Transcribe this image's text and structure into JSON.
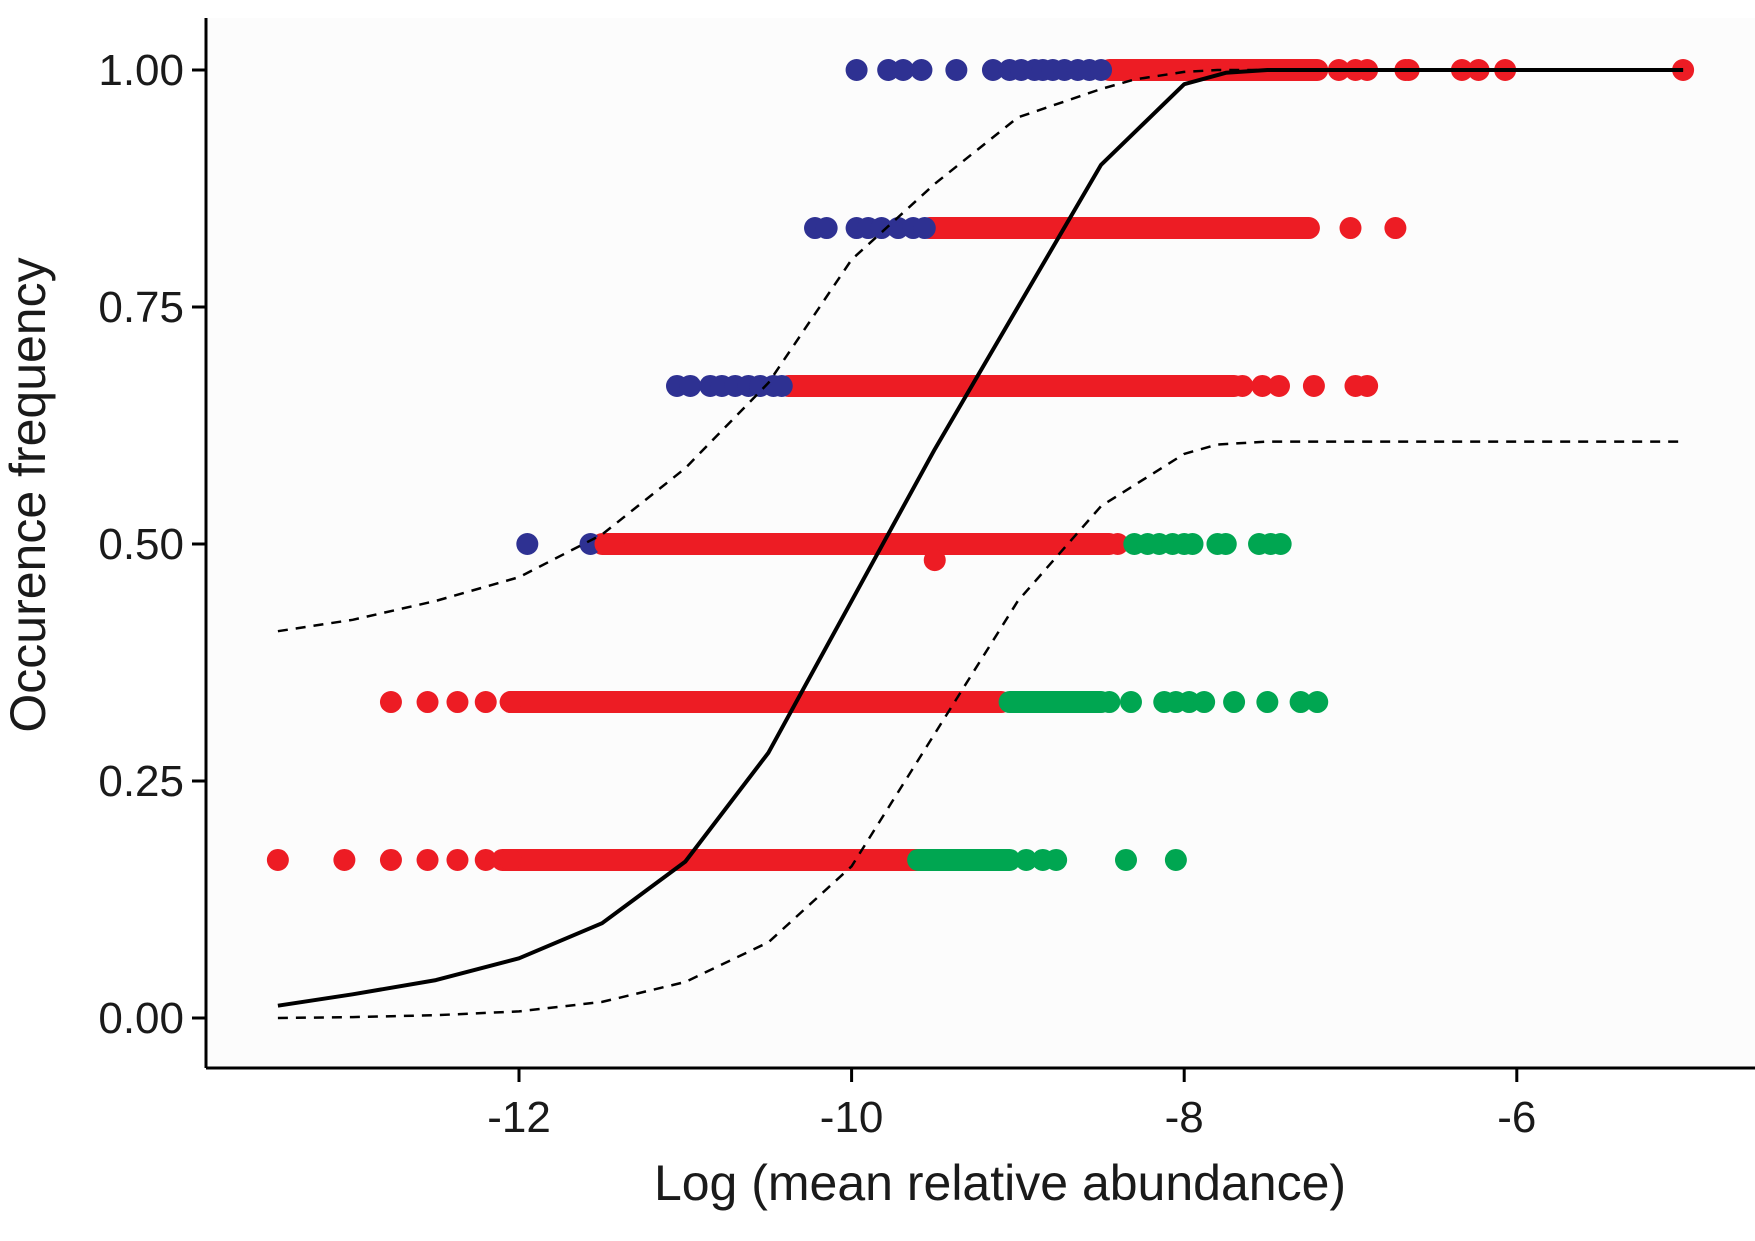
{
  "chart_data": {
    "type": "scatter",
    "title": "",
    "xlabel": "Log (mean relative abundance)",
    "ylabel": "Occurence frequency",
    "xlim": [
      -13.6,
      -4.8
    ],
    "ylim": [
      -0.05,
      1.05
    ],
    "x_ticks": [
      -12,
      -10,
      -8,
      -6
    ],
    "x_tick_labels": [
      "-12",
      "-10",
      "-8",
      "-6"
    ],
    "y_ticks": [
      0,
      0.25,
      0.5,
      0.75,
      1
    ],
    "y_tick_labels": [
      "0.00",
      "0.25",
      "0.50",
      "0.75",
      "1.00"
    ],
    "grid": false,
    "legend": "none",
    "colors": {
      "blue": "#2E3192",
      "red": "#ED1C24",
      "green": "#00A651",
      "curve": "#000000",
      "background": "#FCFCFC"
    },
    "point_groups": [
      {
        "color": "blue",
        "y": 1.0,
        "x_dense": [],
        "x": [
          -9.97,
          -9.78,
          -9.69,
          -9.58,
          -9.37,
          -9.15,
          -9.05,
          -8.98,
          -8.9,
          -8.85,
          -8.79,
          -8.72,
          -8.64,
          -8.57,
          -8.5
        ]
      },
      {
        "color": "red",
        "y": 1.0,
        "x_dense": [
          -8.45,
          -7.2
        ],
        "x": [
          -7.07,
          -6.97,
          -6.9,
          -6.67,
          -6.65,
          -6.33,
          -6.23,
          -6.07,
          -5.0
        ]
      },
      {
        "color": "blue",
        "y": 0.8333,
        "x_dense": [],
        "x": [
          -10.22,
          -10.15,
          -9.97,
          -9.9,
          -9.82,
          -9.72,
          -9.63,
          -9.56
        ]
      },
      {
        "color": "red",
        "y": 0.8333,
        "x_dense": [
          -9.53,
          -7.25
        ],
        "x": [
          -7.0,
          -6.73
        ]
      },
      {
        "color": "blue",
        "y": 0.6667,
        "x_dense": [],
        "x": [
          -11.05,
          -10.97,
          -10.85,
          -10.78,
          -10.7,
          -10.62,
          -10.55,
          -10.47,
          -10.42
        ]
      },
      {
        "color": "red",
        "y": 0.6667,
        "x_dense": [
          -10.38,
          -7.7
        ],
        "x": [
          -7.65,
          -7.53,
          -7.43,
          -7.22,
          -6.97,
          -6.9
        ]
      },
      {
        "color": "blue",
        "y": 0.5,
        "x_dense": [],
        "x": [
          -11.95,
          -11.57
        ]
      },
      {
        "color": "red",
        "y": 0.5,
        "x_dense": [
          -11.5,
          -8.45
        ],
        "x": [
          -11.48,
          -11.3,
          -8.4
        ]
      },
      {
        "color": "red",
        "y": 0.483,
        "x_dense": [],
        "x": [
          -9.5
        ]
      },
      {
        "color": "green",
        "y": 0.5,
        "x_dense": [],
        "x": [
          -8.3,
          -8.22,
          -8.15,
          -8.07,
          -8.0,
          -7.95,
          -7.8,
          -7.75,
          -7.55,
          -7.48,
          -7.42
        ]
      },
      {
        "color": "red",
        "y": 0.3333,
        "x_dense": [
          -12.05,
          -9.1
        ],
        "x": [
          -12.77,
          -12.55,
          -12.37,
          -12.2,
          -12.05
        ]
      },
      {
        "color": "green",
        "y": 0.3333,
        "x_dense": [
          -9.05,
          -8.5
        ],
        "x": [
          -8.45,
          -8.32,
          -8.12,
          -8.05,
          -7.97,
          -7.88,
          -7.7,
          -7.5,
          -7.3,
          -7.2
        ]
      },
      {
        "color": "red",
        "y": 0.1667,
        "x_dense": [
          -12.1,
          -9.6
        ],
        "x": [
          -13.45,
          -13.05,
          -12.77,
          -12.55,
          -12.37,
          -12.2,
          -12.05
        ]
      },
      {
        "color": "green",
        "y": 0.1667,
        "x_dense": [
          -9.6,
          -9.05
        ],
        "x": [
          -8.95,
          -8.85,
          -8.77,
          -8.35,
          -8.05
        ]
      }
    ],
    "series": [
      {
        "style": "solid",
        "x": [
          -13.45,
          -13.0,
          -12.5,
          -12.0,
          -11.5,
          -11.0,
          -10.5,
          -10.0,
          -9.5,
          -9.0,
          -8.5,
          -8.0,
          -7.75,
          -7.5,
          -7.0,
          -6.0,
          -5.0
        ],
        "y": [
          0.013,
          0.025,
          0.04,
          0.063,
          0.1,
          0.165,
          0.28,
          0.44,
          0.6,
          0.75,
          0.9,
          0.985,
          0.997,
          1.0,
          1.0,
          1.0,
          1.0
        ]
      },
      {
        "style": "dashed",
        "x": [
          -13.45,
          -13.0,
          -12.5,
          -12.0,
          -11.5,
          -11.0,
          -10.5,
          -10.0,
          -9.5,
          -9.0,
          -8.5,
          -8.3,
          -8.0,
          -7.8,
          -7.5,
          -7.0,
          -6.0,
          -5.0
        ],
        "y": [
          0.408,
          0.42,
          0.44,
          0.465,
          0.51,
          0.58,
          0.67,
          0.8,
          0.88,
          0.95,
          0.98,
          0.99,
          0.998,
          1.0,
          1.0,
          1.0,
          1.0,
          1.0
        ]
      },
      {
        "style": "dashed",
        "x": [
          -13.45,
          -13.0,
          -12.5,
          -12.0,
          -11.5,
          -11.0,
          -10.5,
          -10.0,
          -9.5,
          -9.0,
          -8.5,
          -8.0,
          -7.8,
          -7.5,
          -7.0,
          -6.0,
          -5.0
        ],
        "y": [
          0.0,
          0.001,
          0.003,
          0.007,
          0.017,
          0.038,
          0.08,
          0.16,
          0.3,
          0.44,
          0.54,
          0.595,
          0.605,
          0.608,
          0.608,
          0.608,
          0.608
        ]
      }
    ]
  }
}
